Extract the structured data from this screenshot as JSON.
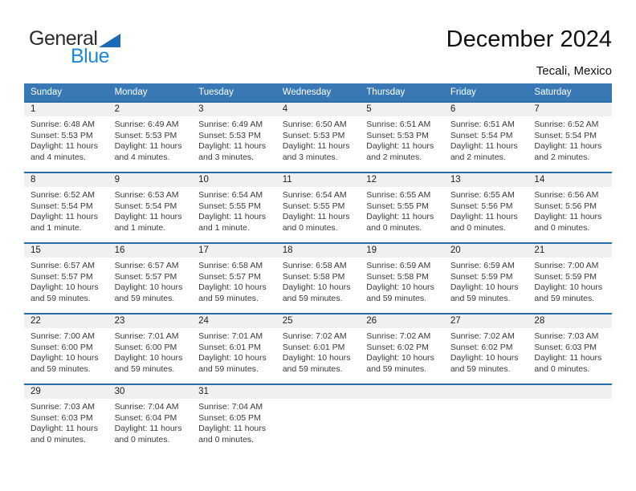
{
  "logo": {
    "general": "General",
    "blue": "Blue"
  },
  "header": {
    "title": "December 2024",
    "location": "Tecali, Mexico"
  },
  "colors": {
    "header_bar": "#3878b4",
    "row_divider": "#2b6cab",
    "day_band": "#f0f0f0",
    "logo_blue_text": "#2089d4",
    "logo_triangle": "#1b6cb5"
  },
  "weekdays": [
    "Sunday",
    "Monday",
    "Tuesday",
    "Wednesday",
    "Thursday",
    "Friday",
    "Saturday"
  ],
  "weeks": [
    [
      {
        "day": "1",
        "sunrise": "Sunrise: 6:48 AM",
        "sunset": "Sunset: 5:53 PM",
        "daylight": [
          "Daylight: 11 hours",
          "and 4 minutes."
        ]
      },
      {
        "day": "2",
        "sunrise": "Sunrise: 6:49 AM",
        "sunset": "Sunset: 5:53 PM",
        "daylight": [
          "Daylight: 11 hours",
          "and 4 minutes."
        ]
      },
      {
        "day": "3",
        "sunrise": "Sunrise: 6:49 AM",
        "sunset": "Sunset: 5:53 PM",
        "daylight": [
          "Daylight: 11 hours",
          "and 3 minutes."
        ]
      },
      {
        "day": "4",
        "sunrise": "Sunrise: 6:50 AM",
        "sunset": "Sunset: 5:53 PM",
        "daylight": [
          "Daylight: 11 hours",
          "and 3 minutes."
        ]
      },
      {
        "day": "5",
        "sunrise": "Sunrise: 6:51 AM",
        "sunset": "Sunset: 5:53 PM",
        "daylight": [
          "Daylight: 11 hours",
          "and 2 minutes."
        ]
      },
      {
        "day": "6",
        "sunrise": "Sunrise: 6:51 AM",
        "sunset": "Sunset: 5:54 PM",
        "daylight": [
          "Daylight: 11 hours",
          "and 2 minutes."
        ]
      },
      {
        "day": "7",
        "sunrise": "Sunrise: 6:52 AM",
        "sunset": "Sunset: 5:54 PM",
        "daylight": [
          "Daylight: 11 hours",
          "and 2 minutes."
        ]
      }
    ],
    [
      {
        "day": "8",
        "sunrise": "Sunrise: 6:52 AM",
        "sunset": "Sunset: 5:54 PM",
        "daylight": [
          "Daylight: 11 hours",
          "and 1 minute."
        ]
      },
      {
        "day": "9",
        "sunrise": "Sunrise: 6:53 AM",
        "sunset": "Sunset: 5:54 PM",
        "daylight": [
          "Daylight: 11 hours",
          "and 1 minute."
        ]
      },
      {
        "day": "10",
        "sunrise": "Sunrise: 6:54 AM",
        "sunset": "Sunset: 5:55 PM",
        "daylight": [
          "Daylight: 11 hours",
          "and 1 minute."
        ]
      },
      {
        "day": "11",
        "sunrise": "Sunrise: 6:54 AM",
        "sunset": "Sunset: 5:55 PM",
        "daylight": [
          "Daylight: 11 hours",
          "and 0 minutes."
        ]
      },
      {
        "day": "12",
        "sunrise": "Sunrise: 6:55 AM",
        "sunset": "Sunset: 5:55 PM",
        "daylight": [
          "Daylight: 11 hours",
          "and 0 minutes."
        ]
      },
      {
        "day": "13",
        "sunrise": "Sunrise: 6:55 AM",
        "sunset": "Sunset: 5:56 PM",
        "daylight": [
          "Daylight: 11 hours",
          "and 0 minutes."
        ]
      },
      {
        "day": "14",
        "sunrise": "Sunrise: 6:56 AM",
        "sunset": "Sunset: 5:56 PM",
        "daylight": [
          "Daylight: 11 hours",
          "and 0 minutes."
        ]
      }
    ],
    [
      {
        "day": "15",
        "sunrise": "Sunrise: 6:57 AM",
        "sunset": "Sunset: 5:57 PM",
        "daylight": [
          "Daylight: 10 hours",
          "and 59 minutes."
        ]
      },
      {
        "day": "16",
        "sunrise": "Sunrise: 6:57 AM",
        "sunset": "Sunset: 5:57 PM",
        "daylight": [
          "Daylight: 10 hours",
          "and 59 minutes."
        ]
      },
      {
        "day": "17",
        "sunrise": "Sunrise: 6:58 AM",
        "sunset": "Sunset: 5:57 PM",
        "daylight": [
          "Daylight: 10 hours",
          "and 59 minutes."
        ]
      },
      {
        "day": "18",
        "sunrise": "Sunrise: 6:58 AM",
        "sunset": "Sunset: 5:58 PM",
        "daylight": [
          "Daylight: 10 hours",
          "and 59 minutes."
        ]
      },
      {
        "day": "19",
        "sunrise": "Sunrise: 6:59 AM",
        "sunset": "Sunset: 5:58 PM",
        "daylight": [
          "Daylight: 10 hours",
          "and 59 minutes."
        ]
      },
      {
        "day": "20",
        "sunrise": "Sunrise: 6:59 AM",
        "sunset": "Sunset: 5:59 PM",
        "daylight": [
          "Daylight: 10 hours",
          "and 59 minutes."
        ]
      },
      {
        "day": "21",
        "sunrise": "Sunrise: 7:00 AM",
        "sunset": "Sunset: 5:59 PM",
        "daylight": [
          "Daylight: 10 hours",
          "and 59 minutes."
        ]
      }
    ],
    [
      {
        "day": "22",
        "sunrise": "Sunrise: 7:00 AM",
        "sunset": "Sunset: 6:00 PM",
        "daylight": [
          "Daylight: 10 hours",
          "and 59 minutes."
        ]
      },
      {
        "day": "23",
        "sunrise": "Sunrise: 7:01 AM",
        "sunset": "Sunset: 6:00 PM",
        "daylight": [
          "Daylight: 10 hours",
          "and 59 minutes."
        ]
      },
      {
        "day": "24",
        "sunrise": "Sunrise: 7:01 AM",
        "sunset": "Sunset: 6:01 PM",
        "daylight": [
          "Daylight: 10 hours",
          "and 59 minutes."
        ]
      },
      {
        "day": "25",
        "sunrise": "Sunrise: 7:02 AM",
        "sunset": "Sunset: 6:01 PM",
        "daylight": [
          "Daylight: 10 hours",
          "and 59 minutes."
        ]
      },
      {
        "day": "26",
        "sunrise": "Sunrise: 7:02 AM",
        "sunset": "Sunset: 6:02 PM",
        "daylight": [
          "Daylight: 10 hours",
          "and 59 minutes."
        ]
      },
      {
        "day": "27",
        "sunrise": "Sunrise: 7:02 AM",
        "sunset": "Sunset: 6:02 PM",
        "daylight": [
          "Daylight: 10 hours",
          "and 59 minutes."
        ]
      },
      {
        "day": "28",
        "sunrise": "Sunrise: 7:03 AM",
        "sunset": "Sunset: 6:03 PM",
        "daylight": [
          "Daylight: 11 hours",
          "and 0 minutes."
        ]
      }
    ],
    [
      {
        "day": "29",
        "sunrise": "Sunrise: 7:03 AM",
        "sunset": "Sunset: 6:03 PM",
        "daylight": [
          "Daylight: 11 hours",
          "and 0 minutes."
        ]
      },
      {
        "day": "30",
        "sunrise": "Sunrise: 7:04 AM",
        "sunset": "Sunset: 6:04 PM",
        "daylight": [
          "Daylight: 11 hours",
          "and 0 minutes."
        ]
      },
      {
        "day": "31",
        "sunrise": "Sunrise: 7:04 AM",
        "sunset": "Sunset: 6:05 PM",
        "daylight": [
          "Daylight: 11 hours",
          "and 0 minutes."
        ]
      },
      null,
      null,
      null,
      null
    ]
  ]
}
